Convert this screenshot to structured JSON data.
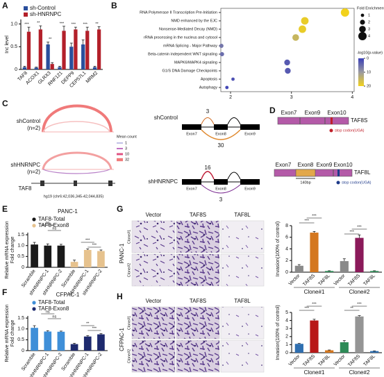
{
  "panel_labels": [
    "A",
    "B",
    "C",
    "D",
    "E",
    "F",
    "G",
    "H"
  ],
  "chart_data": [
    {
      "type": "bar",
      "ylabel": "Inc level",
      "categories": [
        "TAF8",
        "ACOX1",
        "GLRX3",
        "RNF121",
        "DEPP9",
        "CEP57L1",
        "MRM2"
      ],
      "series": [
        {
          "name": "sh-Control",
          "color": "#2a4f9c",
          "values": [
            0.05,
            0.04,
            0.55,
            0.05,
            0.5,
            0.55,
            0.05
          ],
          "errors": [
            0.02,
            0.01,
            0.05,
            0.02,
            0.08,
            0.1,
            0.02
          ]
        },
        {
          "name": "sh-HNRNPC",
          "color": "#b3202a",
          "values": [
            0.83,
            0.88,
            0.12,
            0.85,
            0.88,
            0.85,
            0.88
          ],
          "errors": [
            0.1,
            0.08,
            0.03,
            0.1,
            0.05,
            0.08,
            0.06
          ]
        }
      ],
      "annotations": [
        "***",
        "**",
        "**",
        "***",
        "***",
        "***",
        "**"
      ],
      "ylim": [
        0,
        1.1
      ],
      "yticks": [
        0,
        0.5,
        {
          "value": 1,
          "label": "1.0"
        }
      ]
    },
    {
      "type": "dot",
      "categories": [
        "RNA Polymerase II Transcription Pre-Initiation",
        "NMD enhanced by the EJC",
        "Nonsense-Mediated Decay (NMD)",
        "rRNA processing in the nucleus and cytosol",
        "mRNA Splicing - Major Pathway",
        "Beta-catenin independent WNT signaling",
        "MAPK6/MAPK4 signaling",
        "G1/S DNA Damage Checkpoints",
        "Apoptosis",
        "Autophagy"
      ],
      "values": [
        3.88,
        3.22,
        3.18,
        3.07,
        1.85,
        1.86,
        2.93,
        2.94,
        2.04,
        1.94
      ],
      "sizes": [
        4,
        3.5,
        3.5,
        3,
        1.5,
        1.5,
        2.5,
        2.5,
        1,
        1
      ],
      "color_values": [
        20,
        19,
        19,
        15,
        6,
        5,
        3,
        3,
        2,
        1
      ],
      "colormap": [
        "#3a3fb8",
        "#9a9aa0",
        "#f2d21c"
      ],
      "xlim": [
        1.84,
        4.03
      ],
      "xticks": [
        2,
        3,
        4
      ],
      "size_legend": {
        "title": "Fold Enrichment",
        "values": [
          1,
          2,
          3,
          4
        ]
      },
      "color_legend": {
        "title": "-log10(p-value)",
        "ticks": [
          0,
          10,
          20
        ]
      }
    },
    {
      "type": "bar",
      "title": "PANC-1",
      "ylabel": "Relative mRNA expression",
      "ylabel2": "Fold change",
      "categories": [
        "Scramble",
        "shHNRNPC-1",
        "shHNRNPC-2",
        "Scramble",
        "shHNRNPC-1",
        "shHNRNPC-2"
      ],
      "series": [
        {
          "name": "TAF8-Total",
          "color": "#1a1a1a",
          "values": [
            1.05,
            1.0,
            1.0,
            null,
            null,
            null
          ],
          "errors": [
            0.1,
            0.08,
            0.06,
            null,
            null,
            null
          ]
        },
        {
          "name": "TAF8-Exon8",
          "color": "#e6c28e",
          "values": [
            null,
            null,
            null,
            0.25,
            0.8,
            0.75
          ],
          "errors": [
            null,
            null,
            null,
            0.08,
            0.05,
            0.05
          ]
        }
      ],
      "annotations": [
        "ns",
        "ns",
        "***",
        "***"
      ],
      "ylim": [
        0,
        1.6
      ],
      "yticks": [
        0,
        0.5,
        {
          "value": 1,
          "label": "1.0"
        },
        1.5
      ]
    },
    {
      "type": "bar",
      "title": "CFPAC-1",
      "ylabel": "Relative mRNA expression",
      "ylabel2": "Fold change",
      "categories": [
        "Scramble",
        "shHNRNPC-1",
        "shHNRNPC-2",
        "Scramble",
        "shHNRNPC-1",
        "shHNRNPC-2"
      ],
      "series": [
        {
          "name": "TAF8-Total",
          "color": "#3f8fd8",
          "values": [
            1.05,
            0.88,
            0.87,
            null,
            null,
            null
          ],
          "errors": [
            0.1,
            0.04,
            0.03,
            null,
            null,
            null
          ]
        },
        {
          "name": "TAF8-Exon8",
          "color": "#1e2a6e",
          "values": [
            null,
            null,
            null,
            0.3,
            0.65,
            0.75
          ],
          "errors": [
            null,
            null,
            null,
            0.04,
            0.04,
            0.03
          ]
        }
      ],
      "annotations": [
        "ns",
        "ns",
        "**",
        "***"
      ],
      "ylim": [
        0,
        1.6
      ],
      "yticks": [
        0,
        0.5,
        {
          "value": 1,
          "label": "1.0"
        },
        1.5
      ]
    },
    {
      "type": "bar",
      "ylabel": "Invasion(100% of control)",
      "categories": [
        "Vector",
        "TAF8S",
        "TAF8L",
        "Vector",
        "TAF8S",
        "TAF8L"
      ],
      "values": [
        1.1,
        6.8,
        0.2,
        1.9,
        5.9,
        0.2
      ],
      "errors": [
        0.2,
        0.2,
        0.05,
        0.4,
        0.5,
        0.05
      ],
      "colors": [
        "#8a8a8a",
        "#d4771f",
        "#2e8b57",
        "#8a8a8a",
        "#8b1a5a",
        "#2e8b57"
      ],
      "groups": [
        "Clone#1",
        "Clone#2"
      ],
      "annotations": [
        "***",
        "***",
        "***",
        "***"
      ],
      "ylim": [
        0,
        8
      ],
      "yticks": [
        0,
        2,
        4,
        6,
        8
      ]
    },
    {
      "type": "bar",
      "ylabel": "Invasion(100% of control)",
      "categories": [
        "Vector",
        "TAF8S",
        "TAF8L",
        "Vector",
        "TAF8S",
        "TAF8L"
      ],
      "values": [
        1.1,
        4.0,
        0.3,
        1.3,
        4.5,
        0.2
      ],
      "errors": [
        0.05,
        0.15,
        0.04,
        0.2,
        0.1,
        0.03
      ],
      "colors": [
        "#2f6fb0",
        "#b81818",
        "#d4771f",
        "#2e8b57",
        "#959595",
        "#2f6fb0"
      ],
      "groups": [
        "Clone#1",
        "Clone#2"
      ],
      "annotations": [
        "***",
        "***",
        "**",
        "***"
      ],
      "ylim": [
        0,
        5
      ],
      "yticks": [
        0,
        1,
        2,
        3,
        4,
        5
      ]
    }
  ],
  "sashimi": {
    "tracks": [
      {
        "label": "shControl",
        "n": "(n=2)"
      },
      {
        "label": "shHNRNPC",
        "n": "(n=2)"
      }
    ],
    "gene": "TAF8",
    "coords": "hg19 (chr6:42,036,345-42,044,835)",
    "legend_title": "Mean count",
    "legend_values": [
      1,
      3,
      10,
      32
    ],
    "junctions": [
      {
        "sample": "shControl",
        "labels": [
          3,
          30
        ]
      },
      {
        "sample": "shHNRNPC",
        "labels": [
          16,
          3
        ]
      }
    ],
    "exons": [
      "Exon7",
      "Exon8",
      "Exon9"
    ]
  },
  "isoforms": [
    {
      "name": "TAF8S",
      "exons": [
        "Exon7",
        "Exon9",
        "Exon10"
      ],
      "stop": "stop codon(UGA)"
    },
    {
      "name": "TAF8L",
      "exons": [
        "Exon7",
        "Exon8",
        "Exon9",
        "Exon10"
      ],
      "insert": "140bp",
      "stop": "stop codon(UGA)"
    }
  ],
  "image_grids": [
    {
      "cell_line": "PANC-1",
      "columns": [
        "Vector",
        "TAF8S",
        "TAF8L"
      ],
      "rows": [
        "Clone#1",
        "Clone#2"
      ]
    },
    {
      "cell_line": "CFPAC-1",
      "columns": [
        "Vector",
        "TAF8S",
        "TAF8L"
      ],
      "rows": [
        "Clone#1",
        "Clone#2"
      ]
    }
  ]
}
